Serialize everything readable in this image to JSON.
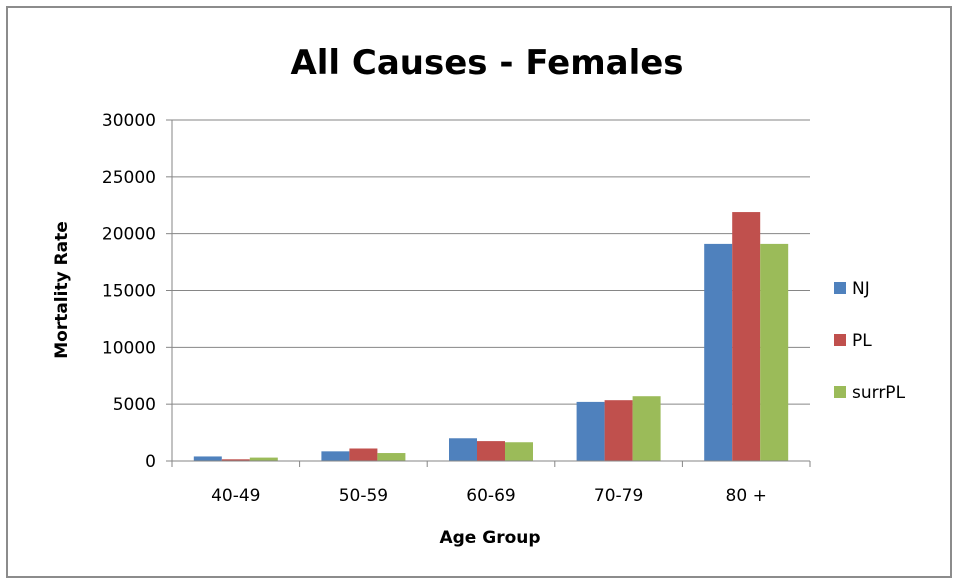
{
  "chart_data": {
    "type": "bar",
    "title": "All Causes - Females",
    "xlabel": "Age Group",
    "ylabel": "Mortality Rate",
    "categories": [
      "40-49",
      "50-59",
      "60-69",
      "70-79",
      "80 +"
    ],
    "series": [
      {
        "name": "NJ",
        "color": "#4f81bd",
        "values": [
          400,
          850,
          2000,
          5200,
          19100
        ]
      },
      {
        "name": "PL",
        "color": "#c0504d",
        "values": [
          150,
          1100,
          1750,
          5350,
          21900
        ]
      },
      {
        "name": "surrPL",
        "color": "#9bbb59",
        "values": [
          300,
          700,
          1650,
          5700,
          19100
        ]
      }
    ],
    "yticks": [
      "0",
      "5000",
      "10000",
      "15000",
      "20000",
      "25000",
      "30000"
    ],
    "ylim": [
      0,
      30000
    ],
    "grid": true,
    "legend": "right"
  }
}
